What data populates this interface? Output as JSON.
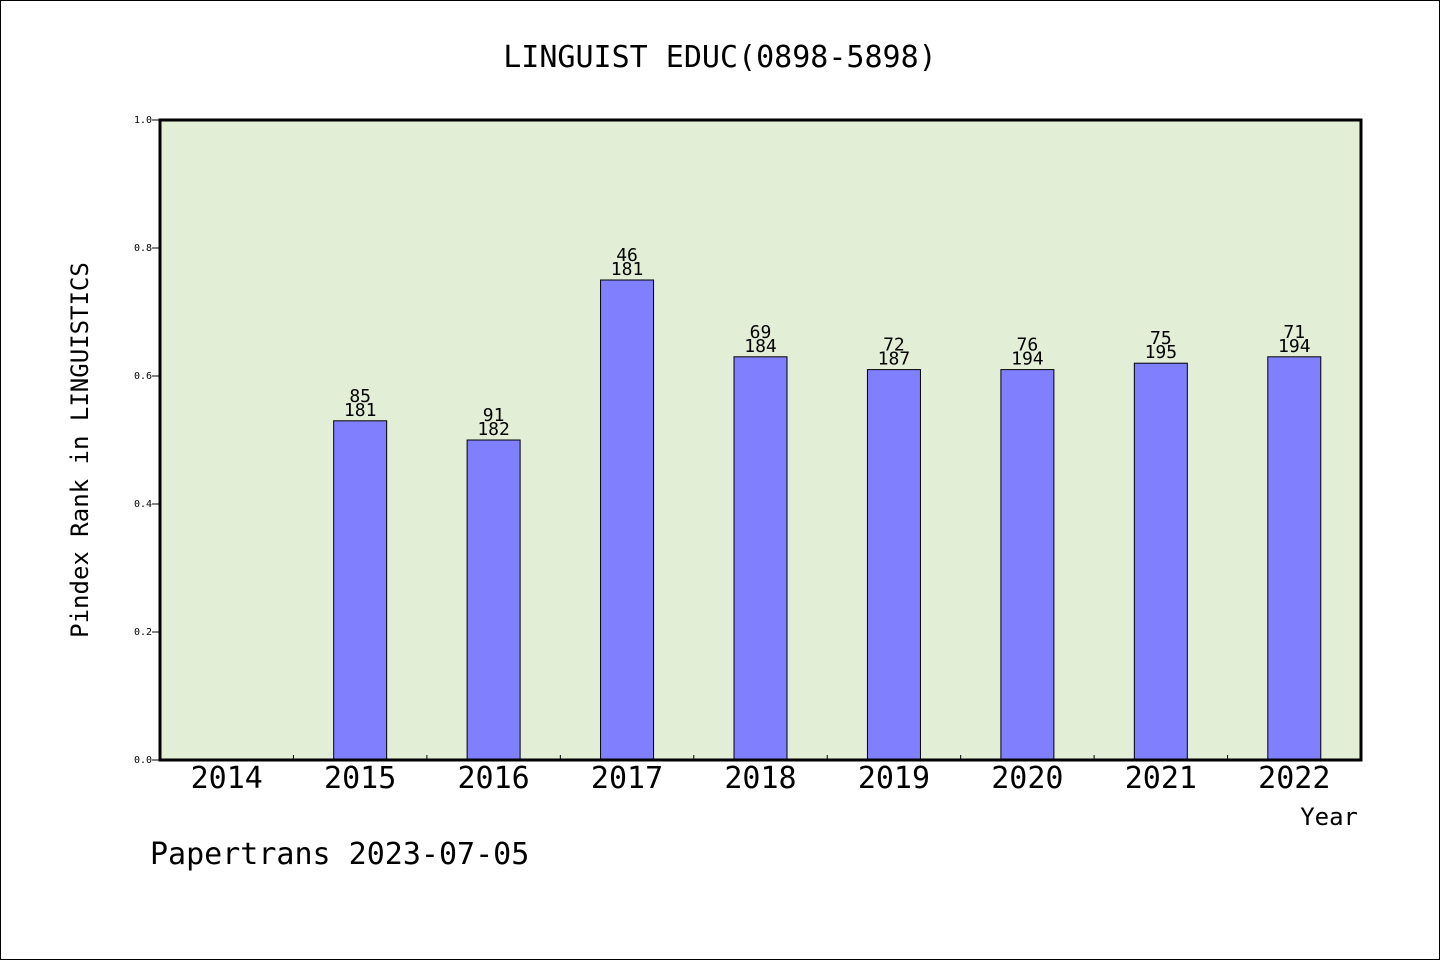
{
  "chart_data": {
    "type": "bar",
    "title": "LINGUIST EDUC(0898-5898)",
    "xlabel": "Year",
    "ylabel": "Pindex Rank in LINGUISTICS",
    "categories": [
      "2014",
      "2015",
      "2016",
      "2017",
      "2018",
      "2019",
      "2020",
      "2021",
      "2022"
    ],
    "values": [
      null,
      0.53,
      0.5,
      0.75,
      0.63,
      0.61,
      0.61,
      0.62,
      0.63
    ],
    "rank": [
      null,
      "85",
      "91",
      "46",
      "69",
      "72",
      "76",
      "75",
      "71"
    ],
    "total": [
      null,
      "181",
      "182",
      "181",
      "184",
      "187",
      "194",
      "195",
      "194"
    ],
    "ylim": [
      0,
      1.0
    ],
    "yticks": [
      "0.0",
      "0.2",
      "0.4",
      "0.6",
      "0.8",
      "1.0"
    ],
    "grid": false,
    "colors": {
      "bar": "#8080ff",
      "plot_bg": "#e2efd6"
    }
  },
  "footer": "Papertrans 2023-07-05"
}
